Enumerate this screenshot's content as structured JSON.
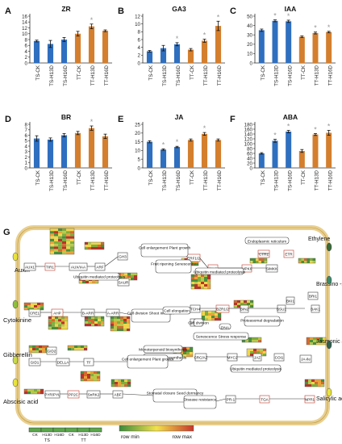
{
  "figure": {
    "panel_letter_g": "G"
  },
  "chart_data": [
    {
      "panel": "A",
      "type": "bar",
      "title": "ZR",
      "categories": [
        "TS-CK",
        "TS-H13D",
        "TS-H16D",
        "TT-CK",
        "TT-H13D",
        "TT-H16D"
      ],
      "values": [
        7.5,
        6.5,
        8.0,
        10.0,
        12.5,
        11.0
      ],
      "errors": [
        0.3,
        1.2,
        0.7,
        0.8,
        0.8,
        0.3
      ],
      "significant": [
        false,
        false,
        false,
        false,
        true,
        false
      ],
      "ylim": [
        0,
        16
      ],
      "yticks": [
        0,
        2,
        4,
        6,
        8,
        10,
        12,
        14,
        16
      ]
    },
    {
      "panel": "B",
      "type": "bar",
      "title": "GA3",
      "categories": [
        "TS-CK",
        "TS-H13D",
        "TS-H16D",
        "TT-CK",
        "TT-H13D",
        "TT-H16D"
      ],
      "values": [
        3.0,
        3.8,
        4.8,
        3.4,
        5.7,
        9.5
      ],
      "errors": [
        0.2,
        0.7,
        0.4,
        0.3,
        0.4,
        1.2
      ],
      "significant": [
        false,
        false,
        true,
        false,
        true,
        true
      ],
      "ylim": [
        0,
        12
      ],
      "yticks": [
        0,
        2,
        4,
        6,
        8,
        10,
        12
      ]
    },
    {
      "panel": "C",
      "type": "bar",
      "title": "IAA",
      "categories": [
        "TS-CK",
        "TS-H13D",
        "TS-H16D",
        "TT-CK",
        "TT-H13D",
        "TT-H16D"
      ],
      "values": [
        35.0,
        45.0,
        44.5,
        28.0,
        32.0,
        33.0
      ],
      "errors": [
        1.2,
        1.0,
        1.2,
        0.8,
        1.0,
        0.8
      ],
      "significant": [
        false,
        true,
        true,
        false,
        true,
        true
      ],
      "ylim": [
        0,
        50
      ],
      "yticks": [
        0,
        10,
        20,
        30,
        40,
        50
      ]
    },
    {
      "panel": "D",
      "type": "bar",
      "title": "BR",
      "categories": [
        "TS-CK",
        "TS-H13D",
        "TS-H16D",
        "TT-CK",
        "TT-H13D",
        "TT-H16D"
      ],
      "values": [
        5.4,
        5.2,
        6.0,
        6.4,
        7.3,
        5.8
      ],
      "errors": [
        0.5,
        0.3,
        0.3,
        0.3,
        0.4,
        0.4
      ],
      "significant": [
        false,
        false,
        false,
        false,
        true,
        false
      ],
      "ylim": [
        0,
        8
      ],
      "yticks": [
        0,
        1,
        2,
        3,
        4,
        5,
        6,
        7,
        8
      ]
    },
    {
      "panel": "E",
      "type": "bar",
      "title": "JA",
      "categories": [
        "TS-CK",
        "TS-H13D",
        "TS-H16D",
        "TT-CK",
        "TT-H13D",
        "TT-H16D"
      ],
      "values": [
        15.0,
        10.5,
        12.0,
        16.0,
        19.5,
        16.0
      ],
      "errors": [
        0.6,
        0.4,
        0.4,
        0.6,
        0.8,
        0.6
      ],
      "significant": [
        false,
        true,
        true,
        false,
        true,
        false
      ],
      "ylim": [
        0,
        25
      ],
      "yticks": [
        0,
        5,
        10,
        15,
        20,
        25
      ]
    },
    {
      "panel": "F",
      "type": "bar",
      "title": "ABA",
      "categories": [
        "TS-CK",
        "TS-H13D",
        "TS-H16D",
        "TT-CK",
        "TT-H13D",
        "TT-H16D"
      ],
      "values": [
        60,
        112,
        150,
        70,
        138,
        145
      ],
      "errors": [
        3,
        6,
        5,
        6,
        4,
        10
      ],
      "significant": [
        false,
        true,
        true,
        false,
        true,
        true
      ],
      "ylim": [
        0,
        180
      ],
      "yticks": [
        0,
        20,
        40,
        60,
        80,
        100,
        120,
        140,
        160,
        180
      ]
    }
  ],
  "colors": {
    "ts_bar": "#2f6fbf",
    "tt_bar": "#d47f2e",
    "star": "#999999",
    "axis": "#333333",
    "cell_membrane": "#e9cf8f",
    "heat_low": "#3a8a3a",
    "heat_mid": "#f2e24a",
    "heat_high": "#c7362b"
  },
  "pathway": {
    "hormones_left": [
      "Auxin",
      "Cytokinine",
      "Gibberellin",
      "Abscisic acid"
    ],
    "hormones_right": [
      "Ethylene",
      "Brassino -steroid",
      "Jasmonic acid",
      "Salicylic acid"
    ],
    "genes": [
      "AUX1",
      "TIR1",
      "AUX/IAA",
      "ARF",
      "GH3",
      "SAUR",
      "CRE1",
      "AHP",
      "B-ARR",
      "A-ARR",
      "GID1",
      "DELLA",
      "TF",
      "PYR/PYL",
      "PP2C",
      "SnRK2",
      "ABF",
      "ETR",
      "CTR1",
      "SIMKK",
      "MPK6",
      "EIN3",
      "ERF1/2",
      "EBF1/2",
      "BKI1",
      "BRI1",
      "BAK1",
      "BSU1",
      "BIN2",
      "BZR1/2",
      "TCH4",
      "CYCD3",
      "COI1",
      "JAZ",
      "MYC2",
      "JA-Ile",
      "NPR1",
      "TGA",
      "PR-1",
      "GID2",
      "CRC/AZ"
    ],
    "processes": [
      "Cell enlargement Plant growth",
      "Fruit ripening Senescence",
      "Ubiquitin mediated proteolysis",
      "Endoplasmic reticulum",
      "Cell division Shoot initiation",
      "Cell elongation",
      "Cell division",
      "Proteasomal degradation",
      "DNA",
      "Senescence Stress response",
      "Monoterpenoid biosynthesis",
      "Indole alkaloid biosynthesis",
      "Cell enlargement Plant growth",
      "Ubiquitin mediated proteolysis",
      "Stomatal closure Seed dormancy",
      "Disease resistance",
      "Ubiquitin mediated proteolysis"
    ],
    "legend_groups": [
      "CK",
      "H13D",
      "H16D",
      "CK",
      "H13D",
      "H16D"
    ],
    "legend_sample_sets": [
      "TS",
      "TT"
    ],
    "legend_min": "row min",
    "legend_max": "row max"
  }
}
